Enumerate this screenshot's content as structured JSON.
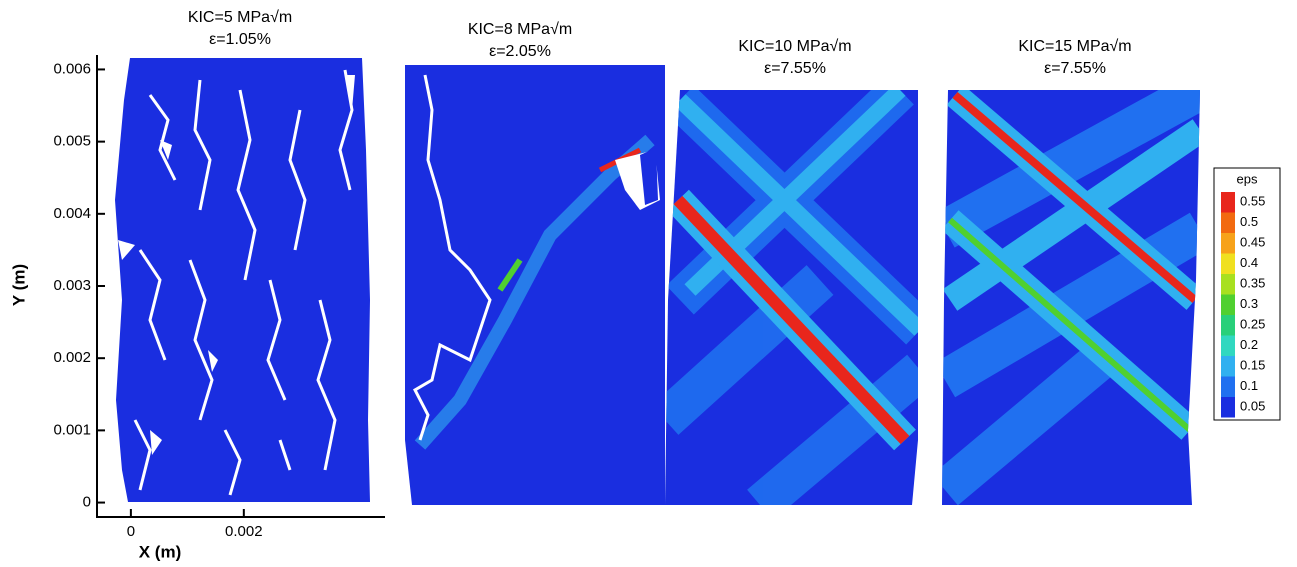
{
  "chart_data": {
    "type": "contour",
    "xlabel": "X (m)",
    "ylabel": "Y (m)",
    "xlim": [
      -0.0006,
      0.0045
    ],
    "ylim": [
      -0.0002,
      0.0062
    ],
    "xticks": [
      0,
      0.002
    ],
    "yticks": [
      0,
      0.001,
      0.002,
      0.003,
      0.004,
      0.005,
      0.006
    ],
    "panels": [
      {
        "title": "KIC=5 MPa√m",
        "subtitle": "ε=1.05%"
      },
      {
        "title": "KIC=8 MPa√m",
        "subtitle": "ε=2.05%"
      },
      {
        "title": "KIC=10 MPa√m",
        "subtitle": "ε=7.55%"
      },
      {
        "title": "KIC=15 MPa√m",
        "subtitle": "ε=7.55%"
      }
    ],
    "colorbar": {
      "title": "eps",
      "levels": [
        0.55,
        0.5,
        0.45,
        0.4,
        0.35,
        0.3,
        0.25,
        0.2,
        0.15,
        0.1,
        0.05
      ],
      "colors": [
        "#e8261c",
        "#f26a10",
        "#f7a21a",
        "#f0e020",
        "#a8e020",
        "#50d030",
        "#28d07a",
        "#30d8c0",
        "#30b0f0",
        "#2070f0",
        "#1a2ee0"
      ]
    }
  }
}
